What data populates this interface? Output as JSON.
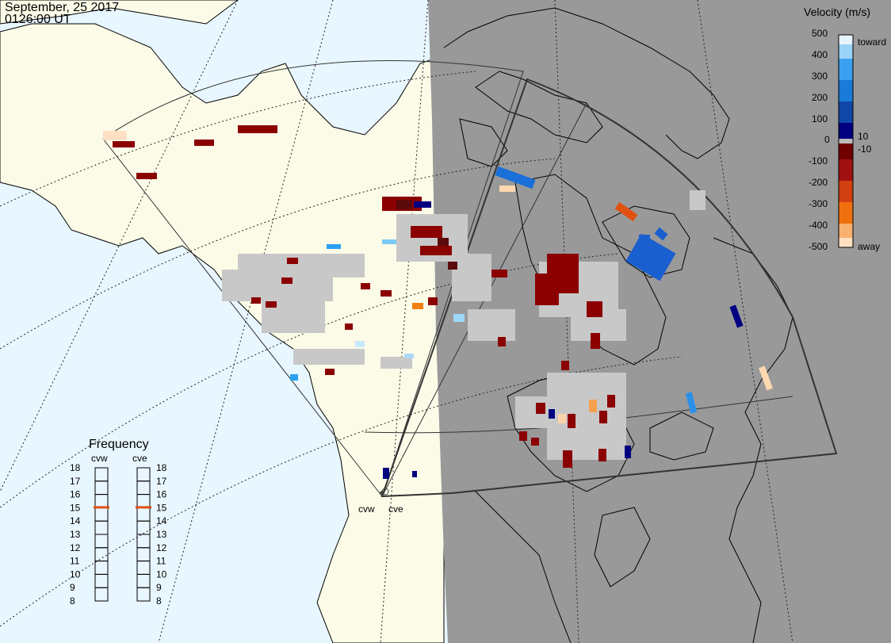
{
  "header": {
    "date": "September, 25 2017",
    "time": "0126:00 UT"
  },
  "colors": {
    "ocean": "#e8f6ff",
    "land": "#fbfbe8",
    "night": "#999999",
    "ground_scatter": "#c8c8c8",
    "coast": "#000000",
    "fov": "#333333"
  },
  "radars": [
    {
      "name": "cvw",
      "label": "cvw"
    },
    {
      "name": "cve",
      "label": "cve"
    }
  ],
  "velocity_scale": {
    "title": "Velocity (m/s)",
    "ticks": [
      "500",
      "400",
      "300",
      "200",
      "100",
      "10",
      "0",
      "-10",
      "-100",
      "-200",
      "-300",
      "-400",
      "-500"
    ],
    "toward_label": "toward",
    "away_label": "away"
  },
  "frequency_panel": {
    "title": "Frequency",
    "radars": [
      "cvw",
      "cve"
    ],
    "ticks": [
      "18",
      "17",
      "16",
      "15",
      "14",
      "13",
      "12",
      "11",
      "10",
      "9",
      "8"
    ],
    "min": 8,
    "max": 18,
    "cvw_value": 15,
    "cve_value": 15,
    "marker_color": "#e05010"
  }
}
